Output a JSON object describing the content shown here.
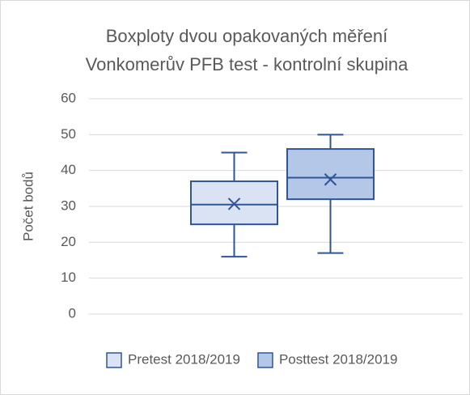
{
  "chart_data": {
    "type": "box",
    "title": [
      "Boxploty dvou opakovaných měření",
      "Vonkomerův PFB test - kontrolní skupina"
    ],
    "y_label": "Počet bodů",
    "ylim": [
      0,
      60
    ],
    "yticks": [
      0,
      10,
      20,
      30,
      40,
      50,
      60
    ],
    "grid": true,
    "legend": "bottom",
    "series": [
      {
        "name": "Pretest 2018/2019",
        "color": "#dae3f3",
        "stroke": "#2f5597",
        "min": 16,
        "q1": 25,
        "median": 30.5,
        "q3": 37,
        "max": 45,
        "mean": 30.7
      },
      {
        "name": "Posttest 2018/2019",
        "color": "#b4c7e7",
        "stroke": "#2f5597",
        "min": 17,
        "q1": 32,
        "median": 38,
        "q3": 46,
        "max": 50,
        "mean": 37.5
      }
    ]
  }
}
